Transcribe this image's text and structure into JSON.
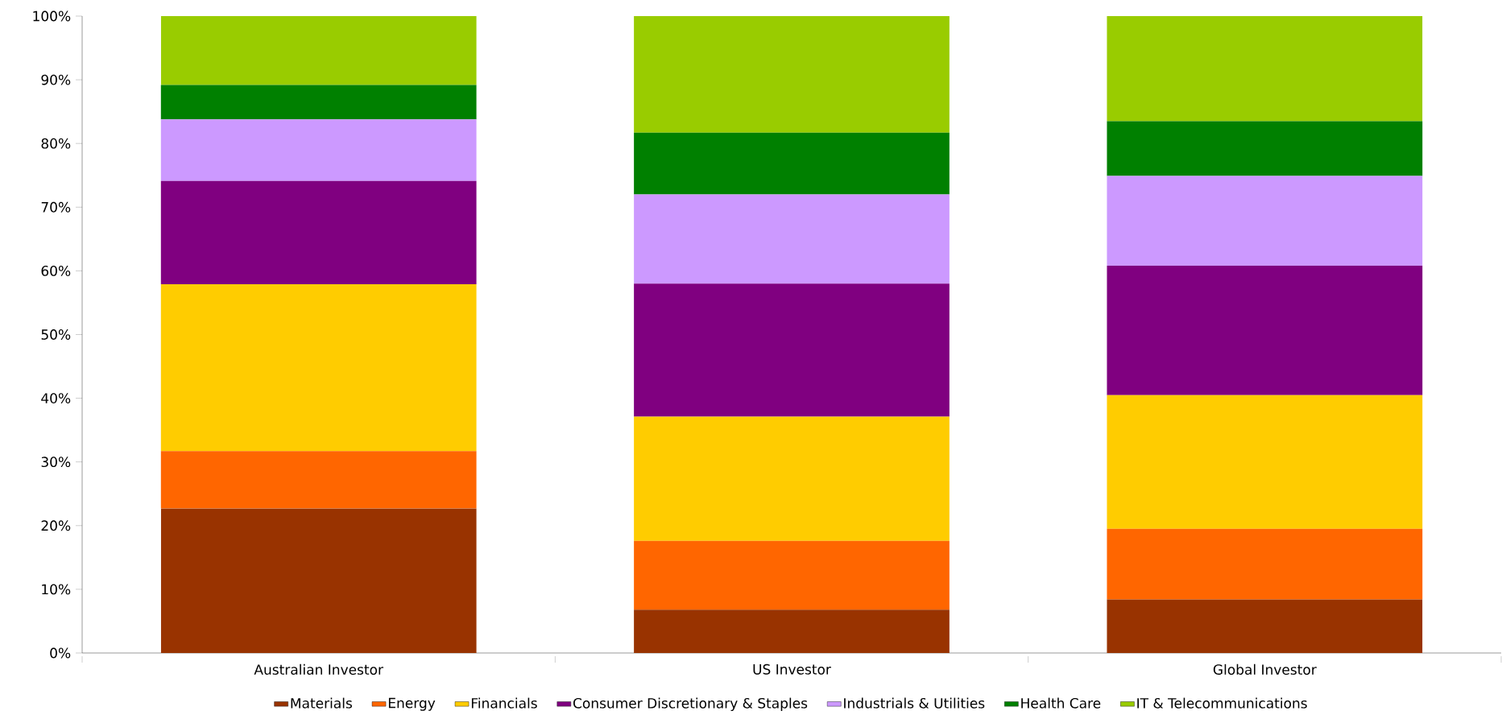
{
  "chart_data": {
    "type": "bar",
    "stacked": true,
    "legend": "bottom",
    "grid": false,
    "categories": [
      "Australian Investor",
      "US Investor",
      "Global Investor"
    ],
    "ylim": [
      0,
      100
    ],
    "yticks": [
      {
        "value": 0,
        "label": "0%"
      },
      {
        "value": 10,
        "label": "10%"
      },
      {
        "value": 20,
        "label": "20%"
      },
      {
        "value": 30,
        "label": "30%"
      },
      {
        "value": 40,
        "label": "40%"
      },
      {
        "value": 50,
        "label": "50%"
      },
      {
        "value": 60,
        "label": "60%"
      },
      {
        "value": 70,
        "label": "70%"
      },
      {
        "value": 80,
        "label": "80%"
      },
      {
        "value": 90,
        "label": "90%"
      },
      {
        "value": 100,
        "label": "100%"
      }
    ],
    "series": [
      {
        "name": "Materials",
        "color": "#993300",
        "values": [
          22.7,
          6.8,
          8.4
        ]
      },
      {
        "name": "Energy",
        "color": "#ff6600",
        "values": [
          9.0,
          10.8,
          11.1
        ]
      },
      {
        "name": "Financials",
        "color": "#ffcc00",
        "values": [
          26.2,
          19.5,
          21.0
        ]
      },
      {
        "name": "Consumer Discretionary & Staples",
        "color": "#800080",
        "values": [
          16.2,
          20.9,
          20.3
        ]
      },
      {
        "name": "Industrials & Utilities",
        "color": "#cc99ff",
        "values": [
          9.7,
          14.0,
          14.1
        ]
      },
      {
        "name": "Health Care",
        "color": "#008000",
        "values": [
          5.4,
          9.7,
          8.6
        ]
      },
      {
        "name": "IT & Telecommunications",
        "color": "#99cc00",
        "values": [
          10.8,
          18.3,
          16.5
        ]
      }
    ]
  }
}
